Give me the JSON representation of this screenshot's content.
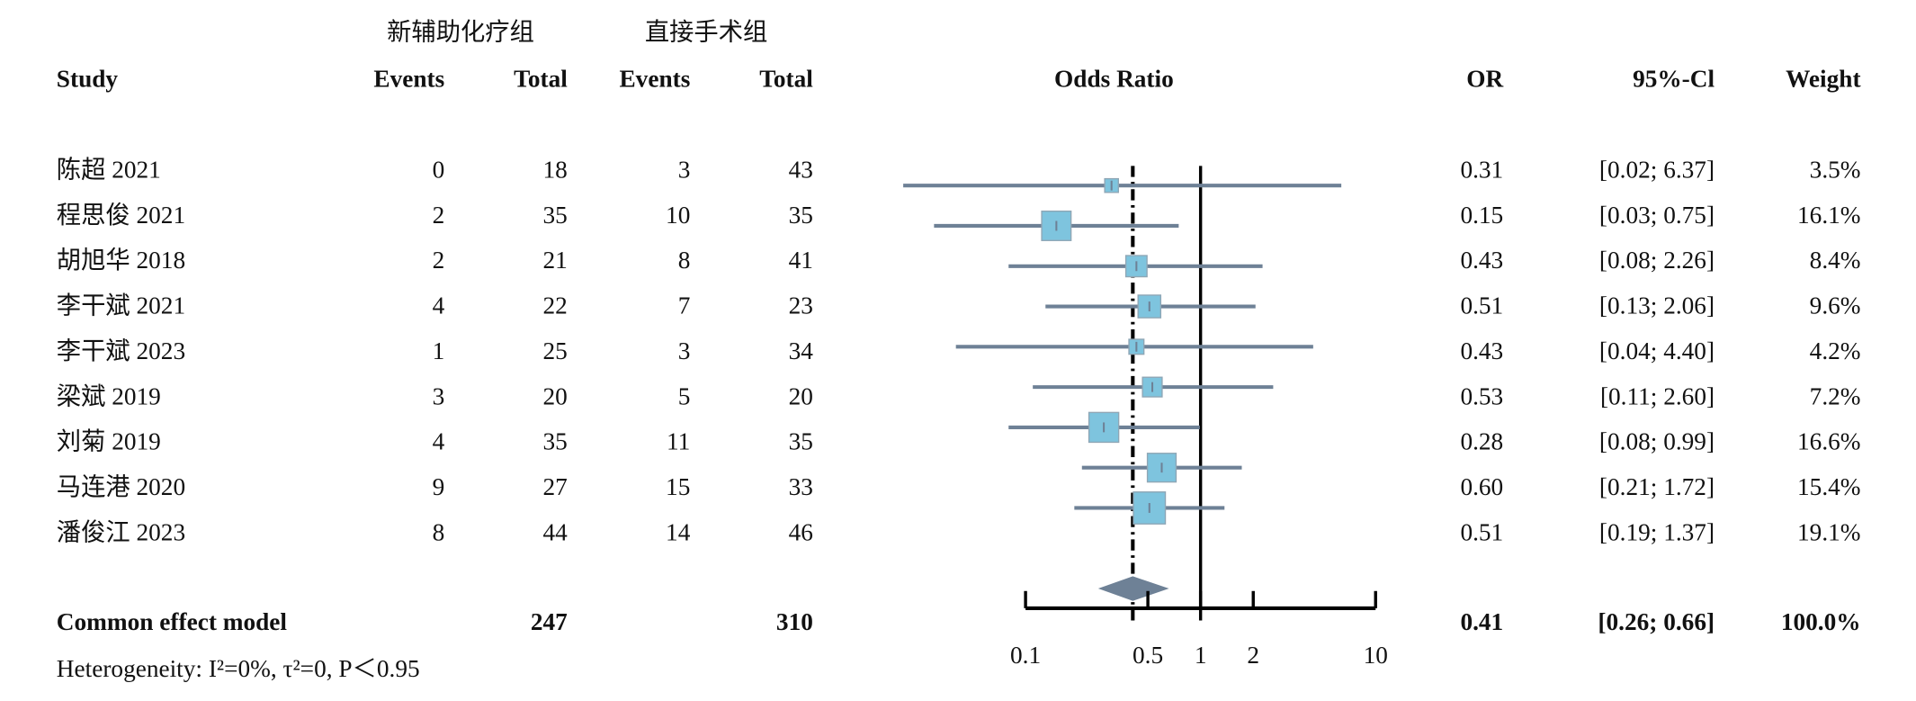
{
  "chart_data": {
    "type": "forest",
    "group_labels": [
      "新辅助化疗组",
      "直接手术组"
    ],
    "columns": {
      "study": "Study",
      "events_1": "Events",
      "total_1": "Total",
      "events_2": "Events",
      "total_2": "Total",
      "plot": "Odds Ratio",
      "or": "OR",
      "ci": "95%-Cl",
      "weight": "Weight"
    },
    "studies": [
      "陈超 2021",
      "程思俊 2021",
      "胡旭华 2018",
      "李干斌 2021",
      "李干斌 2023",
      "梁斌 2019",
      "刘菊 2019",
      "马连港 2020",
      "潘俊江 2023"
    ],
    "events_1": [
      0,
      2,
      2,
      4,
      1,
      3,
      4,
      9,
      8
    ],
    "total_1": [
      18,
      35,
      21,
      22,
      25,
      20,
      35,
      27,
      44
    ],
    "events_2": [
      3,
      10,
      8,
      7,
      3,
      5,
      11,
      15,
      14
    ],
    "total_2": [
      43,
      35,
      41,
      23,
      34,
      20,
      35,
      33,
      46
    ],
    "values": [
      0.31,
      0.15,
      0.43,
      0.51,
      0.43,
      0.53,
      0.28,
      0.6,
      0.51
    ],
    "value_labels": [
      "0.31",
      "0.15",
      "0.43",
      "0.51",
      "0.43",
      "0.53",
      "0.28",
      "0.60",
      "0.51"
    ],
    "ci_low": [
      0.02,
      0.03,
      0.08,
      0.13,
      0.04,
      0.11,
      0.08,
      0.21,
      0.19
    ],
    "ci_high": [
      6.37,
      0.75,
      2.26,
      2.06,
      4.4,
      2.6,
      0.99,
      1.72,
      1.37
    ],
    "ci_labels": [
      "[0.02; 6.37]",
      "[0.03; 0.75]",
      "[0.08; 2.26]",
      "[0.13; 2.06]",
      "[0.04; 4.40]",
      "[0.11; 2.60]",
      "[0.08; 0.99]",
      "[0.21; 1.72]",
      "[0.19; 1.37]"
    ],
    "weights": [
      3.5,
      16.1,
      8.4,
      9.6,
      4.2,
      7.2,
      16.6,
      15.4,
      19.1
    ],
    "weight_labels": [
      "3.5%",
      "16.1%",
      "8.4%",
      "9.6%",
      "4.2%",
      "7.2%",
      "16.6%",
      "15.4%",
      "19.1%"
    ],
    "pooled": {
      "name": "Common effect model",
      "total_1": 247,
      "total_2": 310,
      "value": 0.41,
      "value_label": "0.41",
      "ci_low": 0.26,
      "ci_high": 0.66,
      "ci_label": "[0.26; 0.66]",
      "weight_label": "100.0%"
    },
    "heterogeneity": "Heterogeneity: I²=0%, τ²=0, P＜0.95",
    "xlim": [
      0.1,
      10
    ],
    "xticks": [
      0.1,
      0.5,
      1,
      2,
      10
    ],
    "log_x": true,
    "reference": 1,
    "square_color": "#7ec4de",
    "line_color": "#6e8196",
    "diamond_color": "#6e8196"
  }
}
